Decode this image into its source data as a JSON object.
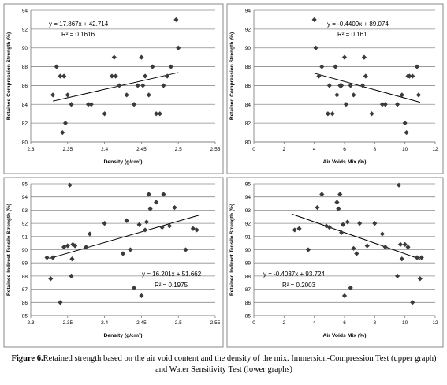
{
  "chart_data": [
    {
      "type": "scatter",
      "xlabel": "Density (g/cm³)",
      "ylabel": "Retained Compression Strength (%)",
      "xlim": [
        2.3,
        2.55
      ],
      "ylim": [
        80,
        94
      ],
      "xticks": [
        "2.3",
        "2.35",
        "2.4",
        "2.45",
        "2.5",
        "2.55"
      ],
      "yticks": [
        "80",
        "82",
        "84",
        "86",
        "88",
        "90",
        "92",
        "94"
      ],
      "equation": "y = 17.867x + 42.714",
      "r2": "R² = 0.1616",
      "trend": {
        "slope": 17.867,
        "intercept": 42.714,
        "x_range": [
          2.33,
          2.5
        ]
      },
      "x": [
        2.33,
        2.335,
        2.34,
        2.343,
        2.345,
        2.347,
        2.35,
        2.355,
        2.378,
        2.382,
        2.4,
        2.41,
        2.413,
        2.415,
        2.42,
        2.43,
        2.44,
        2.445,
        2.45,
        2.452,
        2.455,
        2.46,
        2.465,
        2.47,
        2.475,
        2.48,
        2.485,
        2.49,
        2.497,
        2.5
      ],
      "y": [
        85,
        88,
        87,
        81,
        87,
        82,
        85,
        84,
        84,
        84,
        83,
        87,
        89,
        87,
        86,
        85,
        84,
        86,
        89,
        86,
        87,
        85,
        88,
        83,
        83,
        86,
        87,
        88,
        93,
        90
      ]
    },
    {
      "type": "scatter",
      "xlabel": "Air Voids Mix (%)",
      "ylabel": "Retained Compression Strength (%)",
      "xlim": [
        0,
        12
      ],
      "ylim": [
        80,
        94
      ],
      "xticks": [
        "0",
        "2",
        "4",
        "6",
        "8",
        "10",
        "12"
      ],
      "yticks": [
        "80",
        "82",
        "84",
        "86",
        "88",
        "90",
        "92",
        "94"
      ],
      "equation": "y = -0.4409x + 89.074",
      "r2": "R² = 0.161",
      "trend": {
        "slope": -0.4409,
        "intercept": 89.074,
        "x_range": [
          4.0,
          11.0
        ]
      },
      "x": [
        4.0,
        4.1,
        4.3,
        4.5,
        4.9,
        5.0,
        5.2,
        5.4,
        5.5,
        5.7,
        5.8,
        6.0,
        6.1,
        6.4,
        6.6,
        7.2,
        7.3,
        7.4,
        7.8,
        8.5,
        8.7,
        9.5,
        9.8,
        10.0,
        10.1,
        10.2,
        10.3,
        10.5,
        10.8,
        10.9
      ],
      "y": [
        93,
        90,
        87,
        88,
        83,
        86,
        83,
        88,
        85,
        86,
        86,
        89,
        84,
        86,
        85,
        86,
        89,
        87,
        83,
        84,
        84,
        84,
        85,
        82,
        81,
        87,
        87,
        87,
        88,
        85
      ]
    },
    {
      "type": "scatter",
      "xlabel": "Density (g/cm³)",
      "ylabel": "Retained Indirect Tensile Strength (%)",
      "xlim": [
        2.3,
        2.55
      ],
      "ylim": [
        85,
        95
      ],
      "xticks": [
        "2.3",
        "2.35",
        "2.4",
        "2.45",
        "2.5",
        "2.55"
      ],
      "yticks": [
        "85",
        "86",
        "87",
        "88",
        "89",
        "90",
        "91",
        "92",
        "93",
        "94",
        "95"
      ],
      "equation": "y = 16.201x + 51.662",
      "r2": "R² = 0.1975",
      "trend": {
        "slope": 16.201,
        "intercept": 51.662,
        "x_range": [
          2.325,
          2.53
        ]
      },
      "x": [
        2.322,
        2.327,
        2.33,
        2.34,
        2.345,
        2.35,
        2.353,
        2.355,
        2.356,
        2.357,
        2.36,
        2.375,
        2.38,
        2.4,
        2.425,
        2.43,
        2.435,
        2.44,
        2.447,
        2.45,
        2.455,
        2.457,
        2.46,
        2.462,
        2.47,
        2.478,
        2.48,
        2.488,
        2.495,
        2.51,
        2.52,
        2.525
      ],
      "y": [
        89.4,
        87.8,
        89.4,
        86.0,
        90.2,
        90.3,
        94.9,
        88.0,
        89.3,
        90.4,
        90.3,
        90.2,
        91.2,
        92.0,
        89.7,
        92.2,
        90.0,
        87.1,
        91.9,
        86.5,
        91.5,
        92.1,
        94.2,
        93.1,
        93.6,
        91.7,
        94.2,
        91.8,
        93.2,
        90.0,
        91.6,
        91.5
      ]
    },
    {
      "type": "scatter",
      "xlabel": "Air Voids Mix (%)",
      "ylabel": "Retained Indirect Tensile Strength (%)",
      "xlim": [
        0,
        12
      ],
      "ylim": [
        85,
        95
      ],
      "xticks": [
        "0",
        "2",
        "4",
        "6",
        "8",
        "10",
        "12"
      ],
      "yticks": [
        "85",
        "86",
        "87",
        "88",
        "89",
        "90",
        "91",
        "92",
        "93",
        "94",
        "95"
      ],
      "equation": "y = -0.4037x + 93.724",
      "r2": "R² = 0.2003",
      "trend": {
        "slope": -0.4037,
        "intercept": 93.724,
        "x_range": [
          2.5,
          11.0
        ]
      },
      "x": [
        2.7,
        3.0,
        3.6,
        4.2,
        4.5,
        4.8,
        5.0,
        5.5,
        5.6,
        5.7,
        5.8,
        5.9,
        6.0,
        6.2,
        6.4,
        6.6,
        6.8,
        7.0,
        7.5,
        8.0,
        8.5,
        8.7,
        9.5,
        9.6,
        9.7,
        9.8,
        10.0,
        10.2,
        10.5,
        10.8,
        11.0,
        11.1
      ],
      "y": [
        91.5,
        91.6,
        90.0,
        93.2,
        94.2,
        91.8,
        91.7,
        93.6,
        93.1,
        94.2,
        91.3,
        91.9,
        86.5,
        92.1,
        87.1,
        90.1,
        89.7,
        92.0,
        90.3,
        92.0,
        91.2,
        90.2,
        88.0,
        94.9,
        90.4,
        89.3,
        90.4,
        90.2,
        86.0,
        89.4,
        87.8,
        89.4
      ]
    }
  ],
  "caption": {
    "label": "Figure 6.",
    "text": "Retained strength based on the air void content and the density of the mix. Immersion-Compression Test (upper graph) and Water Sensitivity Test (lower graphs)"
  }
}
